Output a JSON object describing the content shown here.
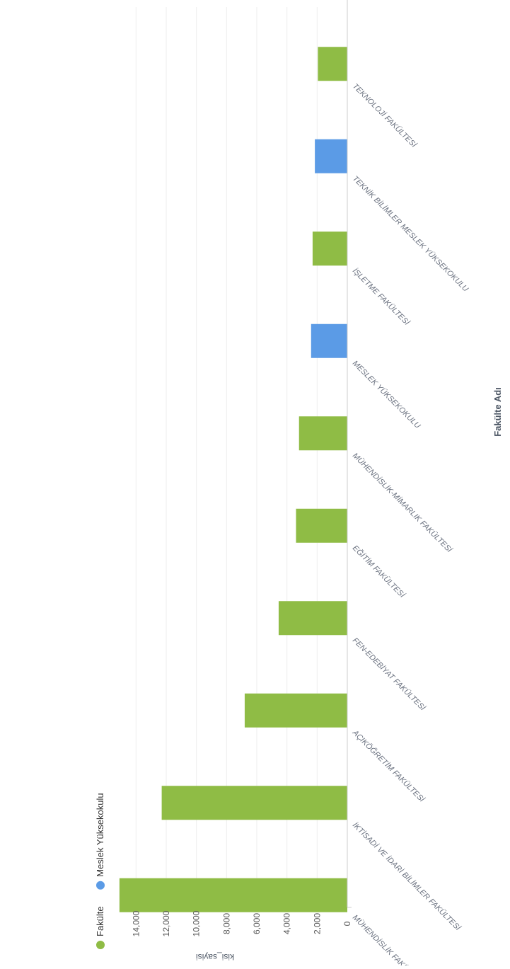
{
  "chart_data": {
    "type": "bar",
    "orientation": "horizontal",
    "xlabel": "Fakülte Adı",
    "ylabel": "kisi_sayisi",
    "ylim": [
      0,
      16000
    ],
    "yticks": [
      0,
      2000,
      4000,
      6000,
      8000,
      10000,
      12000,
      14000
    ],
    "ytick_labels": [
      "0",
      "2,000",
      "4,000",
      "6,000",
      "8,000",
      "10,000",
      "12,000",
      "14,000"
    ],
    "grid": true,
    "legend_position": "top-left",
    "legend": [
      {
        "name": "Fakülte",
        "color": "#8fbc45"
      },
      {
        "name": "Meslek Yüksekokulu",
        "color": "#5b9be6"
      }
    ],
    "categories": [
      "MÜHENDİSLİK FAKÜLTESİ",
      "İKTİSADİ VE İDARİ BİLİMLER FAKÜLTESİ",
      "AÇIKÖĞRETİM FAKÜLTESİ",
      "FEN-EDEBİYAT FAKÜLTESİ",
      "EĞİTİM FAKÜLTESİ",
      "MÜHENDİSLİK-MİMARLIK FAKÜLTESİ",
      "MESLEK YÜKSEKOKULU",
      "İŞLETME FAKÜLTESİ",
      "TEKNİK BİLİMLER MESLEK YÜKSEKOKULU",
      "TEKNOLOJİ FAKÜLTESİ"
    ],
    "values": [
      15100,
      12300,
      6800,
      4550,
      3400,
      3200,
      2400,
      2300,
      2150,
      1950
    ],
    "groups": [
      "Fakülte",
      "Fakülte",
      "Fakülte",
      "Fakülte",
      "Fakülte",
      "Fakülte",
      "Meslek Yüksekokulu",
      "Fakülte",
      "Meslek Yüksekokulu",
      "Fakülte"
    ]
  }
}
